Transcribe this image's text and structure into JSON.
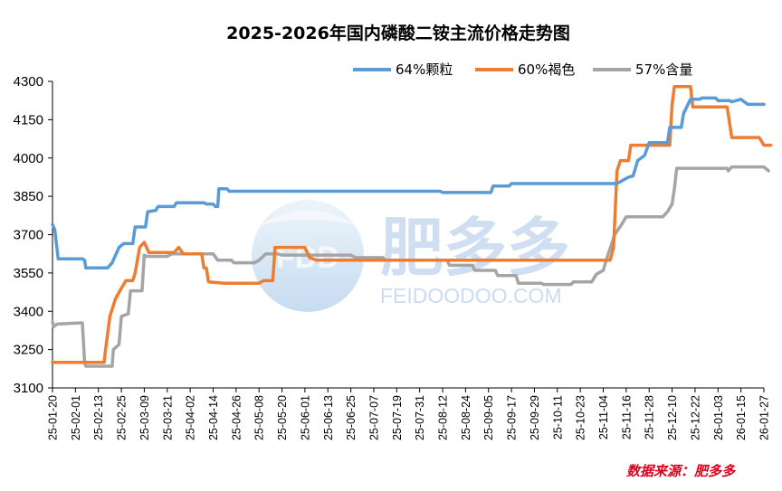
{
  "chart_data": {
    "type": "line",
    "title": "2025-2026年国内磷酸二铵主流价格走势图",
    "source": "数据来源：肥多多",
    "watermark": {
      "brand_cn": "肥多多",
      "brand_en": "FEIDOODOO.COM",
      "logo_text": "FDD"
    },
    "ylim": [
      3100,
      4300
    ],
    "yticks": [
      3100,
      3250,
      3400,
      3550,
      3700,
      3850,
      4000,
      4150,
      4300
    ],
    "xlabels": [
      "25-01-20",
      "25-02-01",
      "25-02-13",
      "25-02-25",
      "25-03-09",
      "25-03-21",
      "25-04-02",
      "25-04-14",
      "25-04-26",
      "25-05-08",
      "25-05-20",
      "25-06-01",
      "25-06-13",
      "25-06-25",
      "25-07-07",
      "25-07-19",
      "25-07-31",
      "25-08-12",
      "25-08-24",
      "25-09-05",
      "25-09-17",
      "25-09-29",
      "25-10-11",
      "25-10-23",
      "25-11-04",
      "25-11-16",
      "25-11-28",
      "25-12-10",
      "25-12-22",
      "26-01-03",
      "26-01-15",
      "26-01-27"
    ],
    "legend_position": "top-right",
    "series": [
      {
        "name": "64%颗粒",
        "color": "#5b9bd5",
        "points": [
          [
            0,
            3740
          ],
          [
            0.1,
            3720
          ],
          [
            0.25,
            3605
          ],
          [
            1.3,
            3605
          ],
          [
            1.4,
            3600
          ],
          [
            1.45,
            3570
          ],
          [
            2.4,
            3570
          ],
          [
            2.6,
            3590
          ],
          [
            2.9,
            3650
          ],
          [
            3.1,
            3665
          ],
          [
            3.5,
            3665
          ],
          [
            3.6,
            3730
          ],
          [
            4.05,
            3730
          ],
          [
            4.15,
            3790
          ],
          [
            4.5,
            3795
          ],
          [
            4.6,
            3810
          ],
          [
            5.3,
            3810
          ],
          [
            5.4,
            3825
          ],
          [
            6.6,
            3825
          ],
          [
            6.7,
            3820
          ],
          [
            7.0,
            3820
          ],
          [
            7.1,
            3810
          ],
          [
            7.2,
            3810
          ],
          [
            7.25,
            3880
          ],
          [
            7.6,
            3880
          ],
          [
            7.7,
            3870
          ],
          [
            16.9,
            3870
          ],
          [
            17.0,
            3865
          ],
          [
            19.1,
            3865
          ],
          [
            19.2,
            3890
          ],
          [
            19.9,
            3890
          ],
          [
            20.0,
            3900
          ],
          [
            24.6,
            3900
          ],
          [
            24.7,
            3905
          ],
          [
            25.1,
            3925
          ],
          [
            25.3,
            3930
          ],
          [
            25.5,
            3990
          ],
          [
            25.8,
            4010
          ],
          [
            26.0,
            4060
          ],
          [
            26.8,
            4060
          ],
          [
            26.9,
            4120
          ],
          [
            27.4,
            4120
          ],
          [
            27.5,
            4175
          ],
          [
            27.8,
            4230
          ],
          [
            28.2,
            4230
          ],
          [
            28.3,
            4235
          ],
          [
            28.9,
            4235
          ],
          [
            29.0,
            4225
          ],
          [
            29.5,
            4225
          ],
          [
            29.6,
            4220
          ],
          [
            30.0,
            4230
          ],
          [
            30.3,
            4210
          ],
          [
            31.0,
            4210
          ]
        ]
      },
      {
        "name": "60%褐色",
        "color": "#ed7d31",
        "points": [
          [
            0,
            3200
          ],
          [
            2.25,
            3200
          ],
          [
            2.3,
            3240
          ],
          [
            2.5,
            3380
          ],
          [
            2.75,
            3450
          ],
          [
            3.0,
            3490
          ],
          [
            3.2,
            3520
          ],
          [
            3.5,
            3520
          ],
          [
            3.6,
            3550
          ],
          [
            3.8,
            3650
          ],
          [
            4.0,
            3670
          ],
          [
            4.2,
            3630
          ],
          [
            5.3,
            3630
          ],
          [
            5.5,
            3650
          ],
          [
            5.7,
            3625
          ],
          [
            6.5,
            3625
          ],
          [
            6.6,
            3570
          ],
          [
            6.7,
            3570
          ],
          [
            6.8,
            3515
          ],
          [
            7.5,
            3510
          ],
          [
            9.0,
            3510
          ],
          [
            9.2,
            3520
          ],
          [
            9.6,
            3520
          ],
          [
            9.7,
            3650
          ],
          [
            11.0,
            3650
          ],
          [
            11.2,
            3610
          ],
          [
            11.5,
            3600
          ],
          [
            24.3,
            3600
          ],
          [
            24.45,
            3650
          ],
          [
            24.6,
            3950
          ],
          [
            24.75,
            3990
          ],
          [
            25.1,
            3990
          ],
          [
            25.2,
            4050
          ],
          [
            26.9,
            4050
          ],
          [
            27.0,
            4210
          ],
          [
            27.1,
            4280
          ],
          [
            27.8,
            4280
          ],
          [
            27.9,
            4200
          ],
          [
            29.4,
            4200
          ],
          [
            29.6,
            4080
          ],
          [
            30.8,
            4080
          ],
          [
            31.0,
            4050
          ],
          [
            31.3,
            4050
          ]
        ]
      },
      {
        "name": "57%含量",
        "color": "#a5a5a5",
        "points": [
          [
            0,
            3360
          ],
          [
            0.05,
            3340
          ],
          [
            0.2,
            3350
          ],
          [
            1.3,
            3355
          ],
          [
            1.4,
            3200
          ],
          [
            1.45,
            3185
          ],
          [
            2.6,
            3185
          ],
          [
            2.65,
            3250
          ],
          [
            2.9,
            3270
          ],
          [
            3.0,
            3380
          ],
          [
            3.3,
            3390
          ],
          [
            3.4,
            3480
          ],
          [
            3.9,
            3480
          ],
          [
            4.0,
            3620
          ],
          [
            4.1,
            3615
          ],
          [
            5.0,
            3615
          ],
          [
            5.2,
            3625
          ],
          [
            7.0,
            3625
          ],
          [
            7.2,
            3600
          ],
          [
            7.8,
            3600
          ],
          [
            7.9,
            3590
          ],
          [
            8.8,
            3590
          ],
          [
            9.0,
            3600
          ],
          [
            9.3,
            3625
          ],
          [
            9.8,
            3625
          ],
          [
            10.0,
            3620
          ],
          [
            13.0,
            3620
          ],
          [
            13.2,
            3610
          ],
          [
            14.4,
            3610
          ],
          [
            14.5,
            3600
          ],
          [
            17.2,
            3600
          ],
          [
            17.3,
            3580
          ],
          [
            18.3,
            3580
          ],
          [
            18.4,
            3560
          ],
          [
            19.3,
            3560
          ],
          [
            19.4,
            3540
          ],
          [
            20.2,
            3540
          ],
          [
            20.3,
            3510
          ],
          [
            21.3,
            3510
          ],
          [
            21.4,
            3505
          ],
          [
            22.6,
            3505
          ],
          [
            22.7,
            3515
          ],
          [
            23.5,
            3515
          ],
          [
            23.7,
            3545
          ],
          [
            24.0,
            3560
          ],
          [
            24.2,
            3620
          ],
          [
            24.5,
            3700
          ],
          [
            24.8,
            3740
          ],
          [
            25.0,
            3770
          ],
          [
            26.6,
            3770
          ],
          [
            26.8,
            3790
          ],
          [
            27.0,
            3820
          ],
          [
            27.1,
            3880
          ],
          [
            27.2,
            3960
          ],
          [
            29.4,
            3960
          ],
          [
            29.45,
            3950
          ],
          [
            29.6,
            3965
          ],
          [
            31.0,
            3965
          ],
          [
            31.2,
            3950
          ]
        ]
      }
    ]
  }
}
